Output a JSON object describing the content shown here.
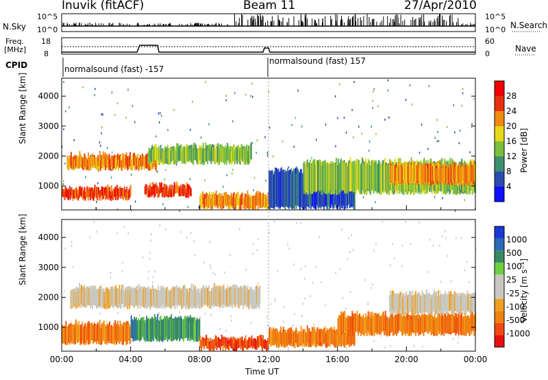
{
  "header": {
    "station": "Inuvik (fitACF)",
    "beam": "Beam 11",
    "date": "27/Apr/2010"
  },
  "summary_panels": {
    "nsky_label": "N.Sky",
    "nsky_ticks": [
      "10^5",
      "10^0"
    ],
    "nsearch_label": "N.Search",
    "nsearch_ticks": [
      "10^5",
      "10^0"
    ],
    "freq_label": "Freq.",
    "freq_unit": "[MHz]",
    "freq_ticks": [
      "18",
      "8"
    ],
    "nave_label": "Nave",
    "nave_ticks": [
      "60",
      "0"
    ],
    "cpid_label": "CPID",
    "cpid_segments": [
      {
        "text": "normalsound (fast) -157",
        "start_ut": 0
      },
      {
        "text": "normalsound (fast) 157",
        "start_ut": 12
      }
    ]
  },
  "chart_data": [
    {
      "type": "heatmap",
      "panel": "power",
      "ylabel": "Slant Range [km]",
      "yticks": [
        1000,
        2000,
        3000,
        4000
      ],
      "ylim": [
        200,
        4600
      ],
      "xlim": [
        0,
        24
      ],
      "colorbar_label": "Power [dB]",
      "colorbar_ticks": [
        "28",
        "24",
        "20",
        "16",
        "12",
        "8",
        "4"
      ],
      "colorbar_colors": [
        "#1010ff",
        "#2a4db0",
        "#3f8f6e",
        "#7cbf3f",
        "#e8d81a",
        "#f08a10",
        "#e83010",
        "#f00000"
      ],
      "bands": [
        {
          "t0": 0.0,
          "t1": 4.0,
          "r0": 600,
          "r1": 900,
          "level": 6
        },
        {
          "t0": 4.8,
          "t1": 7.5,
          "r0": 700,
          "r1": 1000,
          "level": 6
        },
        {
          "t0": 0.3,
          "t1": 5.5,
          "r0": 1600,
          "r1": 2000,
          "level": 5
        },
        {
          "t0": 5.0,
          "t1": 11.0,
          "r0": 1800,
          "r1": 2300,
          "level": 3
        },
        {
          "t0": 8.0,
          "t1": 12.0,
          "r0": 300,
          "r1": 700,
          "level": 5
        },
        {
          "t0": 12.0,
          "t1": 17.0,
          "r0": 300,
          "r1": 1500,
          "level": 1
        },
        {
          "t0": 14.0,
          "t1": 24.0,
          "r0": 800,
          "r1": 1800,
          "level": 3
        },
        {
          "t0": 19.0,
          "t1": 24.0,
          "r0": 1100,
          "r1": 1700,
          "level": 5
        }
      ]
    },
    {
      "type": "heatmap",
      "panel": "velocity",
      "ylabel": "Slant Range [km]",
      "yticks": [
        1000,
        2000,
        3000,
        4000
      ],
      "ylim": [
        200,
        4600
      ],
      "xlim": [
        0,
        24
      ],
      "xticks": [
        "00:00",
        "04:00",
        "08:00",
        "12:00",
        "16:00",
        "20:00",
        "00:00"
      ],
      "xlabel": "Time UT",
      "colorbar_label": "Velocity [m s⁻¹]",
      "colorbar_ticks": [
        "1000",
        "500",
        "100",
        "25",
        "-25",
        "-100",
        "-500",
        "-1000"
      ],
      "colorbar_colors": [
        "#e81010",
        "#f04a10",
        "#f08010",
        "#f0a020",
        "#c8c8c0",
        "#c8c8c0",
        "#6fd040",
        "#3a8a60",
        "#2a6ab8",
        "#1a3ad8"
      ],
      "bands": [
        {
          "t0": 0.0,
          "t1": 4.0,
          "r0": 500,
          "r1": 1100,
          "level": 2
        },
        {
          "t0": 4.0,
          "t1": 8.0,
          "r0": 600,
          "r1": 1300,
          "level": 7
        },
        {
          "t0": 8.0,
          "t1": 12.0,
          "r0": 300,
          "r1": 600,
          "level": 1
        },
        {
          "t0": 0.5,
          "t1": 11.5,
          "r0": 1700,
          "r1": 2300,
          "level": 4
        },
        {
          "t0": 12.0,
          "t1": 17.0,
          "r0": 400,
          "r1": 900,
          "level": 2
        },
        {
          "t0": 16.0,
          "t1": 24.0,
          "r0": 800,
          "r1": 1400,
          "level": 2
        },
        {
          "t0": 19.0,
          "t1": 24.0,
          "r0": 1500,
          "r1": 2100,
          "level": 4
        }
      ]
    }
  ]
}
